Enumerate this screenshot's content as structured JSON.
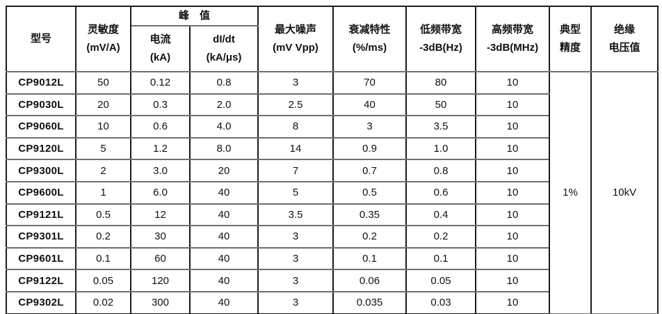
{
  "table": {
    "header": {
      "model": "型号",
      "sensitivity_line1": "灵敏度",
      "sensitivity_line2": "(mV/A)",
      "peak": "峰　值",
      "peak_current_line1": "电流",
      "peak_current_line2": "(kA)",
      "didt_line1": "dI/dt",
      "didt_line2": "(kA/μs)",
      "noise_line1": "最大噪声",
      "noise_line2": "(mV Vpp)",
      "droop_line1": "衰减特性",
      "droop_line2": "(%/ms)",
      "lf_bandwidth_line1": "低频带宽",
      "lf_bandwidth_line2": "-3dB(Hz)",
      "hf_bandwidth_line1": "高频带宽",
      "hf_bandwidth_line2": "-3dB(MHz)",
      "accuracy_line1": "典型",
      "accuracy_line2": "精度",
      "insulation_line1": "绝缘",
      "insulation_line2": "电压值"
    },
    "rows": [
      {
        "model": "CP9012L",
        "sensitivity": "50",
        "peak_current": "0.12",
        "didt": "0.8",
        "noise": "3",
        "droop": "70",
        "lf": "80",
        "hf": "10"
      },
      {
        "model": "CP9030L",
        "sensitivity": "20",
        "peak_current": "0.3",
        "didt": "2.0",
        "noise": "2.5",
        "droop": "40",
        "lf": "50",
        "hf": "10"
      },
      {
        "model": "CP9060L",
        "sensitivity": "10",
        "peak_current": "0.6",
        "didt": "4.0",
        "noise": "8",
        "droop": "3",
        "lf": "3.5",
        "hf": "10"
      },
      {
        "model": "CP9120L",
        "sensitivity": "5",
        "peak_current": "1.2",
        "didt": "8.0",
        "noise": "14",
        "droop": "0.9",
        "lf": "1.0",
        "hf": "10"
      },
      {
        "model": "CP9300L",
        "sensitivity": "2",
        "peak_current": "3.0",
        "didt": "20",
        "noise": "7",
        "droop": "0.7",
        "lf": "0.8",
        "hf": "10"
      },
      {
        "model": "CP9600L",
        "sensitivity": "1",
        "peak_current": "6.0",
        "didt": "40",
        "noise": "5",
        "droop": "0.5",
        "lf": "0.6",
        "hf": "10"
      },
      {
        "model": "CP9121L",
        "sensitivity": "0.5",
        "peak_current": "12",
        "didt": "40",
        "noise": "3.5",
        "droop": "0.35",
        "lf": "0.4",
        "hf": "10"
      },
      {
        "model": "CP9301L",
        "sensitivity": "0.2",
        "peak_current": "30",
        "didt": "40",
        "noise": "3",
        "droop": "0.2",
        "lf": "0.2",
        "hf": "10"
      },
      {
        "model": "CP9601L",
        "sensitivity": "0.1",
        "peak_current": "60",
        "didt": "40",
        "noise": "3",
        "droop": "0.1",
        "lf": "0.1",
        "hf": "10"
      },
      {
        "model": "CP9122L",
        "sensitivity": "0.05",
        "peak_current": "120",
        "didt": "40",
        "noise": "3",
        "droop": "0.06",
        "lf": "0.05",
        "hf": "10"
      },
      {
        "model": "CP9302L",
        "sensitivity": "0.02",
        "peak_current": "300",
        "didt": "40",
        "noise": "3",
        "droop": "0.035",
        "lf": "0.03",
        "hf": "10"
      }
    ],
    "accuracy_value": "1%",
    "insulation_value": "10kV"
  }
}
